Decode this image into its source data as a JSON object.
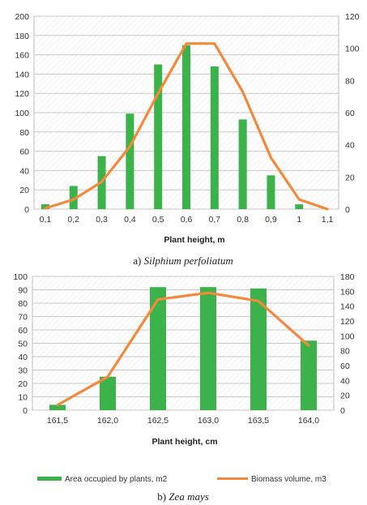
{
  "chart_data": [
    {
      "type": "bar",
      "combo": "bar+line",
      "x": [
        0.1,
        0.2,
        0.3,
        0.4,
        0.5,
        0.6,
        0.7,
        0.8,
        0.9,
        1,
        1.1
      ],
      "x_tick_labels": [
        "0,1",
        "0,2",
        "0,3",
        "0,4",
        "0,5",
        "0,6",
        "0,7",
        "0,8",
        "0,9",
        "1",
        "1,1"
      ],
      "xlabel": "Plant height, m",
      "caption_prefix": "a) ",
      "caption_species": "Silphium perfoliatum",
      "ylim_left": [
        0,
        200
      ],
      "yticks_left": [
        0,
        20,
        40,
        60,
        80,
        100,
        120,
        140,
        160,
        180,
        200
      ],
      "ylim_right": [
        0,
        120
      ],
      "yticks_right": [
        0,
        20,
        40,
        60,
        80,
        100,
        120
      ],
      "grid": true,
      "series": [
        {
          "kind": "bar",
          "axis": "left",
          "color": "#3cb34a",
          "values": [
            5,
            24,
            55,
            99,
            150,
            170,
            148,
            93,
            35,
            5,
            0
          ]
        },
        {
          "kind": "line",
          "axis": "right",
          "color": "#f4893c",
          "values": [
            0.5,
            6,
            17,
            39,
            72,
            103,
            103,
            73,
            32,
            6,
            0
          ]
        }
      ]
    },
    {
      "type": "bar",
      "combo": "bar+line",
      "x": [
        "161,5",
        "162,0",
        "162,5",
        "163,0",
        "163,5",
        "164,0"
      ],
      "xlabel": "Plant height, cm",
      "caption_prefix": "b) ",
      "caption_species": "Zea mays",
      "ylim_left": [
        0,
        100
      ],
      "yticks_left": [
        0,
        10,
        20,
        30,
        40,
        50,
        60,
        70,
        80,
        90,
        100
      ],
      "ylim_right": [
        0,
        180
      ],
      "yticks_right": [
        0,
        20,
        40,
        60,
        80,
        100,
        120,
        140,
        160,
        180
      ],
      "grid": true,
      "legend_position": "bottom",
      "series": [
        {
          "kind": "bar",
          "axis": "left",
          "name": "Area occupied by plants, m2",
          "color": "#3cb34a",
          "values": [
            4,
            25,
            92,
            92,
            91,
            52
          ]
        },
        {
          "kind": "line",
          "axis": "right",
          "name": "Biomass volume, m3",
          "color": "#f4893c",
          "values": [
            7,
            45,
            149,
            158,
            147,
            87
          ]
        }
      ]
    }
  ]
}
